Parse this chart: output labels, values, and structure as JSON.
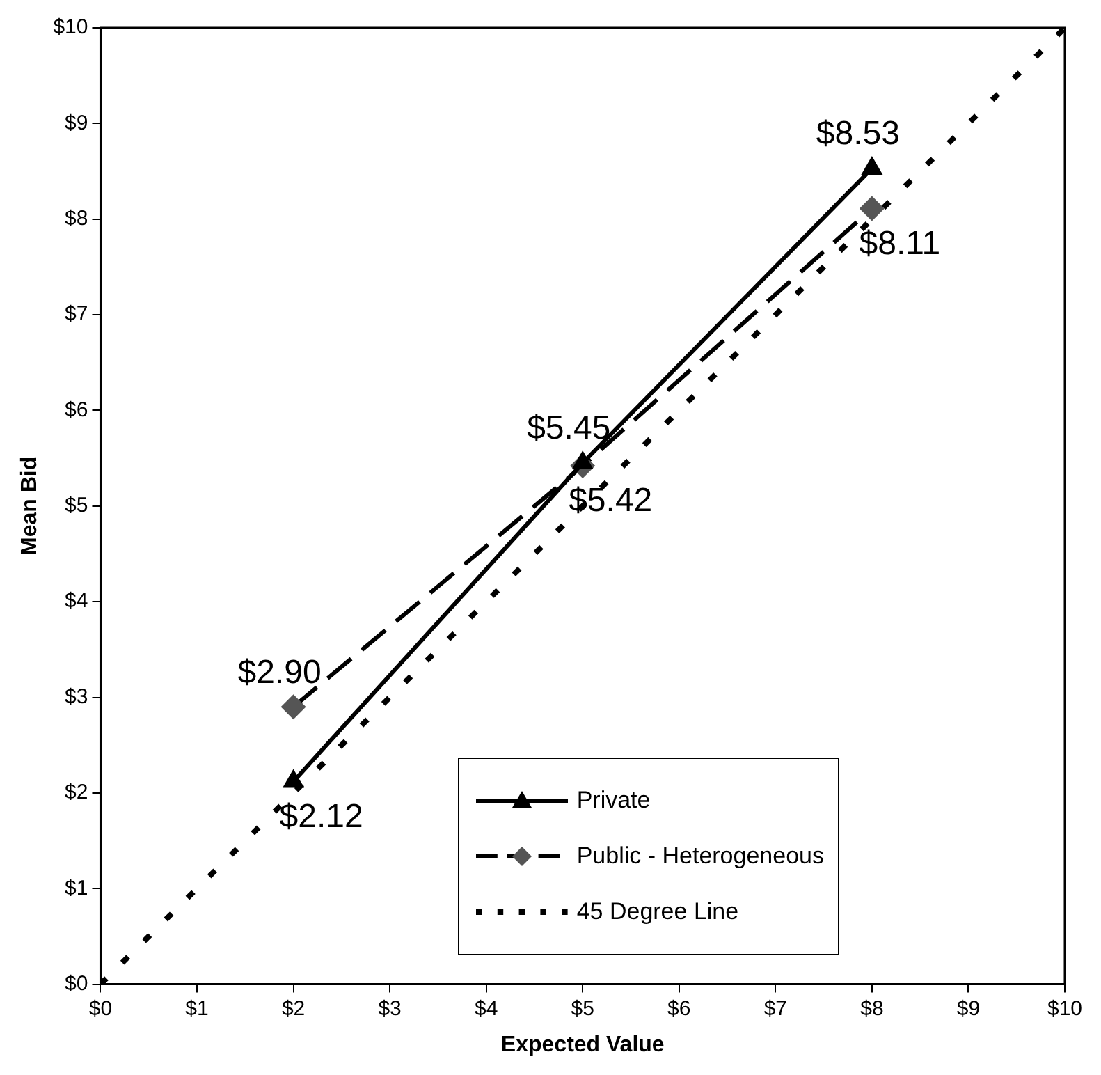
{
  "chart_data": {
    "type": "line",
    "xlabel": "Expected Value",
    "ylabel": "Mean Bid",
    "legend": "bottom right",
    "grid": false,
    "xlim": [
      0,
      10
    ],
    "ylim": [
      0,
      10
    ],
    "xticks": [
      {
        "value": 0,
        "label": "$0"
      },
      {
        "value": 1,
        "label": "$1"
      },
      {
        "value": 2,
        "label": "$2"
      },
      {
        "value": 3,
        "label": "$3"
      },
      {
        "value": 4,
        "label": "$4"
      },
      {
        "value": 5,
        "label": "$5"
      },
      {
        "value": 6,
        "label": "$6"
      },
      {
        "value": 7,
        "label": "$7"
      },
      {
        "value": 8,
        "label": "$8"
      },
      {
        "value": 9,
        "label": "$9"
      },
      {
        "value": 10,
        "label": "$10"
      }
    ],
    "yticks": [
      {
        "value": 0,
        "label": "$0"
      },
      {
        "value": 1,
        "label": "$1"
      },
      {
        "value": 2,
        "label": "$2"
      },
      {
        "value": 3,
        "label": "$3"
      },
      {
        "value": 4,
        "label": "$4"
      },
      {
        "value": 5,
        "label": "$5"
      },
      {
        "value": 6,
        "label": "$6"
      },
      {
        "value": 7,
        "label": "$7"
      },
      {
        "value": 8,
        "label": "$8"
      },
      {
        "value": 9,
        "label": "$9"
      },
      {
        "value": 10,
        "label": "$10"
      }
    ],
    "series": [
      {
        "name": "Private",
        "color": "#000000",
        "x": [
          2,
          5,
          8
        ],
        "values": [
          2.12,
          5.45,
          8.53
        ],
        "marker": "triangle",
        "line_style": "solid",
        "value_labels": [
          "$2.12",
          "$5.45",
          "$8.53"
        ]
      },
      {
        "name": "Public - Heterogeneous",
        "color": "#000000",
        "x": [
          2,
          5,
          8
        ],
        "values": [
          2.9,
          5.42,
          8.11
        ],
        "marker": "diamond",
        "line_style": "dashed",
        "value_labels": [
          "$2.90",
          "$5.42",
          "$8.11"
        ]
      },
      {
        "name": "45 Degree Line",
        "color": "#000000",
        "x": [
          0,
          10
        ],
        "values": [
          0,
          10
        ],
        "marker": "none",
        "line_style": "dotted"
      }
    ]
  }
}
